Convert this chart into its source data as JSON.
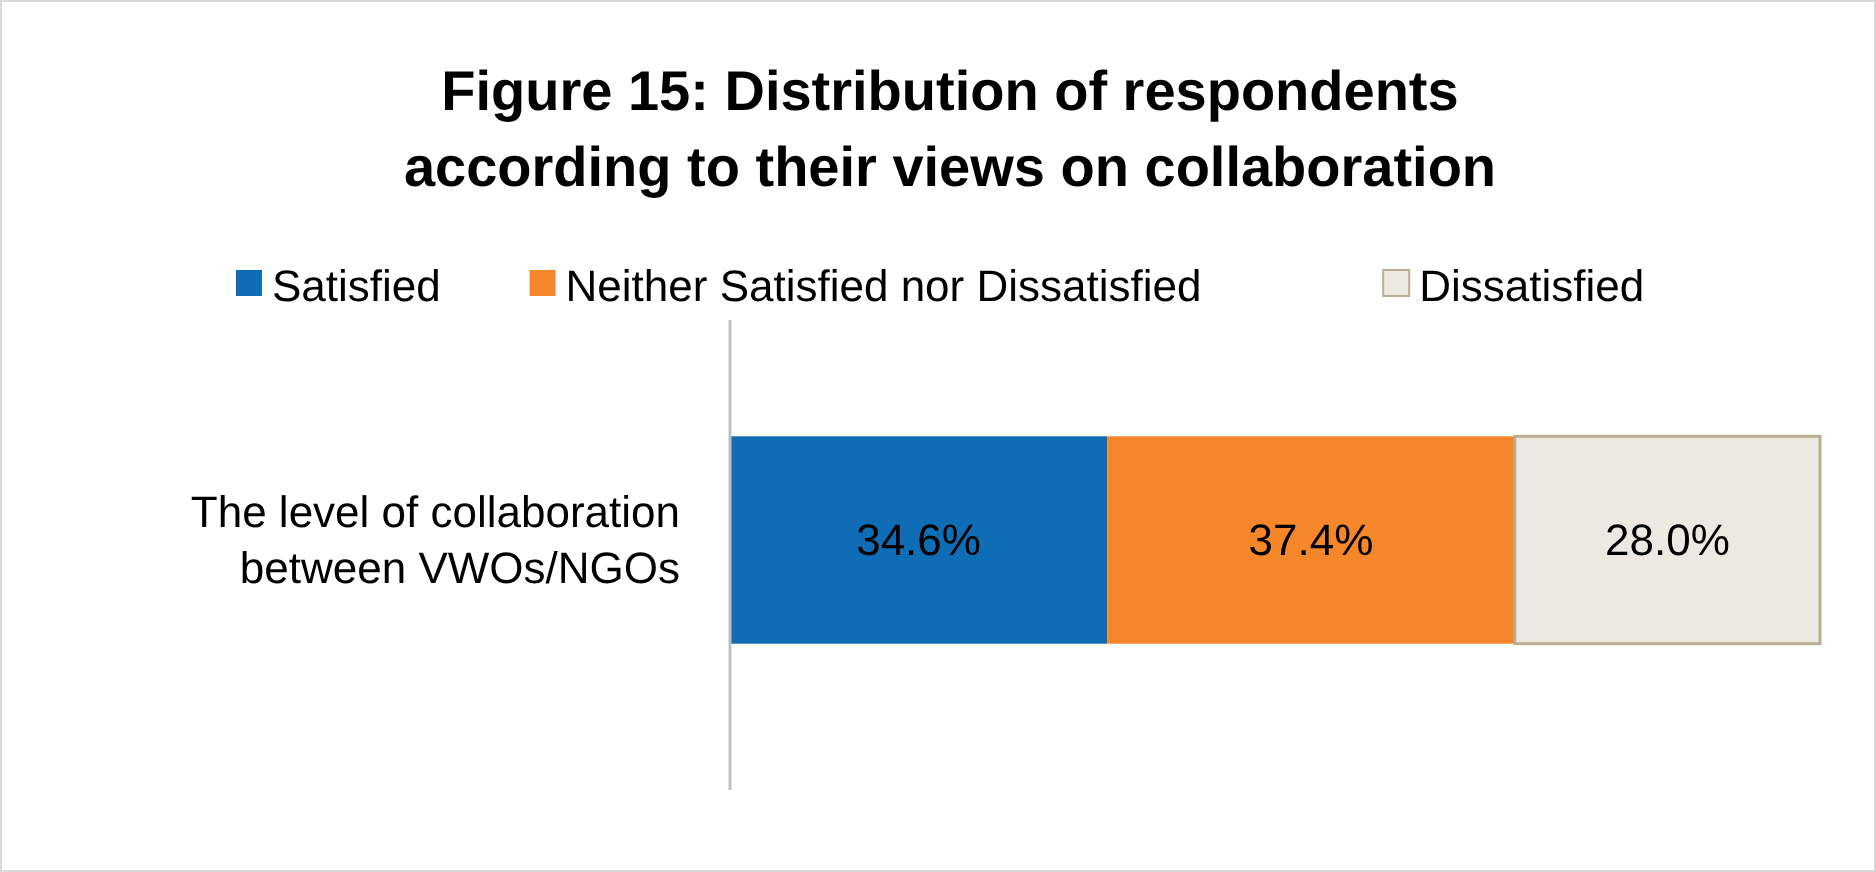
{
  "chart_data": {
    "type": "bar",
    "orientation": "horizontal",
    "stacked": true,
    "title": "Figure 15: Distribution of respondents according to their views on collaboration",
    "categories": [
      "The level of collaboration between VWOs/NGOs"
    ],
    "xlim": [
      0,
      100
    ],
    "tick_labels": "y",
    "legend": "top",
    "series": [
      {
        "name": "Satisfied",
        "color": "#0f6db6",
        "values": [
          34.6
        ],
        "value_labels": [
          "34.6%"
        ]
      },
      {
        "name": "Neither Satisfied nor Dissatisfied",
        "color": "#f5872a",
        "values": [
          37.4
        ],
        "value_labels": [
          "37.4%"
        ]
      },
      {
        "name": "Dissatisfied",
        "color": "#ede9e1",
        "values": [
          28.0
        ],
        "value_labels": [
          "28.0%"
        ]
      }
    ]
  }
}
